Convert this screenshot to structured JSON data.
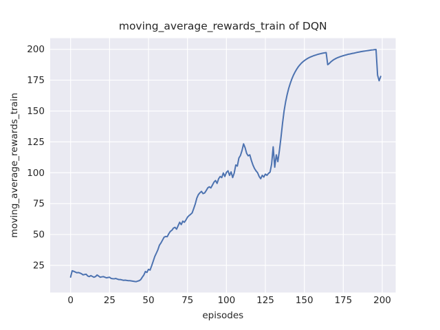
{
  "window": {
    "type": "matplotlib-figure",
    "background": "#ffffff"
  },
  "colors": {
    "figure_background": "#ffffff",
    "axes_background": "#eaeaf2",
    "gridline": "#ffffff",
    "line": "#4c72b0",
    "text": "#262626"
  },
  "chart_data": {
    "type": "line",
    "title": "moving_average_rewards_train of DQN",
    "xlabel": "episodes",
    "ylabel": "moving_average_rewards_train",
    "grid": true,
    "legend": "none",
    "x_ticks": [
      0,
      25,
      50,
      75,
      100,
      125,
      150,
      175,
      200
    ],
    "y_ticks": [
      25,
      50,
      75,
      100,
      125,
      150,
      175,
      200
    ],
    "xlim": [
      -13.1,
      208.6
    ],
    "ylim": [
      3.0,
      209.0
    ],
    "series": [
      {
        "name": "moving_average_rewards_train",
        "color": "#4c72b0",
        "x_start": 0,
        "x_step": 1,
        "values": [
          15.5,
          20.6,
          20.2,
          19.6,
          19.0,
          19.2,
          18.8,
          18.2,
          17.3,
          17.6,
          17.8,
          16.4,
          15.9,
          16.7,
          16.0,
          15.4,
          15.9,
          17.2,
          16.3,
          15.4,
          15.7,
          15.9,
          15.4,
          14.9,
          15.2,
          15.4,
          14.4,
          14.2,
          14.1,
          14.4,
          13.9,
          13.5,
          13.5,
          13.2,
          12.9,
          13.0,
          12.8,
          12.6,
          12.6,
          12.4,
          12.2,
          12.0,
          11.8,
          12.2,
          12.6,
          13.5,
          15.4,
          17.2,
          20.0,
          19.3,
          21.8,
          21.2,
          24.6,
          28.3,
          32.1,
          34.8,
          37.6,
          41.3,
          43.2,
          45.5,
          47.8,
          48.4,
          48.2,
          50.6,
          52.5,
          53.4,
          55.2,
          55.8,
          54.3,
          57.1,
          59.9,
          58.0,
          60.8,
          59.9,
          61.7,
          64.0,
          65.3,
          66.3,
          67.5,
          71.0,
          74.7,
          79.5,
          82.3,
          83.8,
          84.9,
          83.1,
          83.6,
          85.5,
          87.7,
          88.6,
          87.7,
          90.0,
          92.4,
          93.7,
          91.4,
          95.2,
          97.0,
          96.1,
          99.8,
          97.0,
          100.3,
          101.6,
          97.9,
          100.7,
          96.1,
          99.8,
          106.3,
          105.4,
          111.9,
          114.0,
          118.0,
          123.4,
          120.2,
          115.6,
          113.7,
          114.5,
          110.0,
          106.3,
          103.5,
          101.5,
          100.0,
          97.0,
          95.2,
          97.9,
          96.5,
          98.9,
          97.9,
          99.5,
          100.5,
          107.0,
          121.0,
          104.5,
          114.5,
          109.0,
          118.0,
          128.5,
          140.0,
          150.0,
          157.5,
          163.5,
          168.5,
          172.5,
          176.0,
          179.0,
          181.5,
          183.7,
          185.6,
          187.2,
          188.6,
          189.8,
          190.8,
          191.7,
          192.5,
          193.2,
          193.8,
          194.3,
          194.8,
          195.2,
          195.6,
          196.0,
          196.3,
          196.6,
          196.9,
          197.1,
          197.3,
          187.5,
          188.5,
          189.8,
          190.8,
          191.7,
          192.4,
          193.0,
          193.5,
          194.0,
          194.4,
          194.8,
          195.2,
          195.5,
          195.9,
          196.1,
          196.4,
          196.7,
          196.9,
          197.2,
          197.5,
          197.7,
          198.0,
          198.2,
          198.4,
          198.6,
          198.8,
          199.0,
          199.2,
          199.4,
          199.5,
          199.7,
          199.8,
          179.0,
          174.5,
          178.0
        ]
      }
    ]
  }
}
